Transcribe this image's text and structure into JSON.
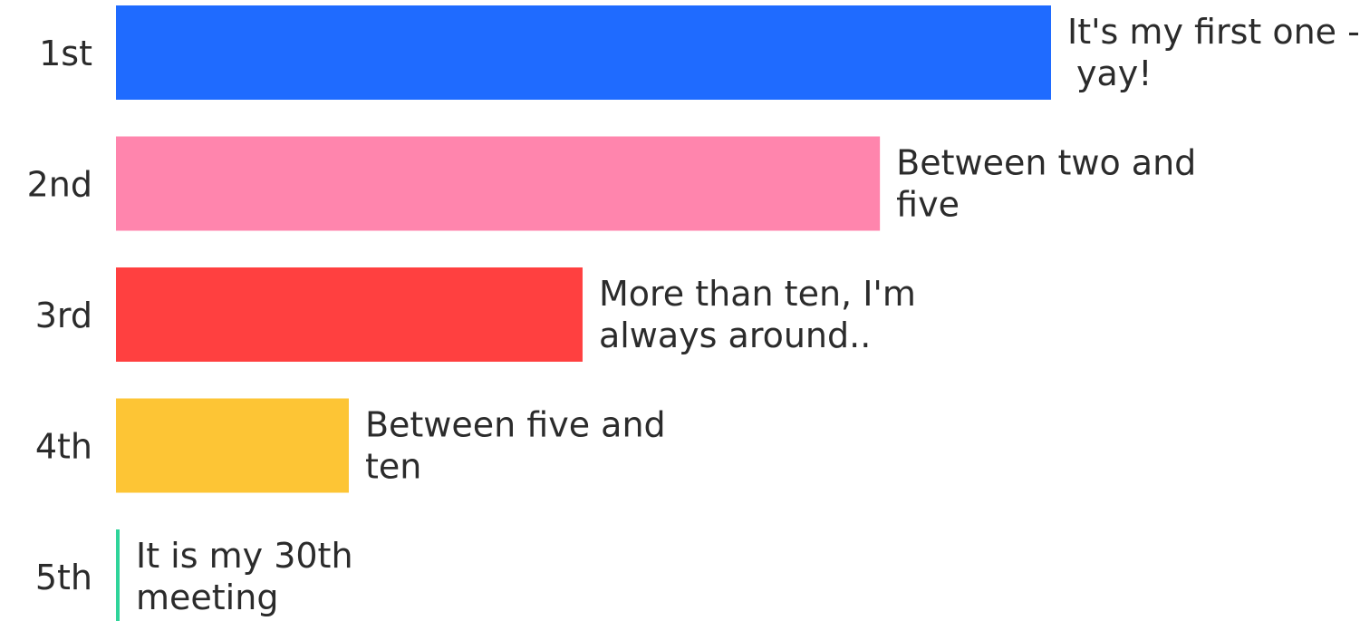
{
  "chart_data": {
    "type": "bar",
    "orientation": "horizontal",
    "title": "",
    "xlabel": "",
    "ylabel": "",
    "categories": [
      "1st",
      "2nd",
      "3rd",
      "4th",
      "5th"
    ],
    "labels": [
      [
        "It's my first one -",
        "yay!"
      ],
      [
        "Between two and",
        "five"
      ],
      [
        "More than ten, I'm",
        "always around.."
      ],
      [
        "Between five and",
        "ten"
      ],
      [
        "It is my 30th",
        "meeting"
      ]
    ],
    "values": [
      100,
      81.7,
      49.9,
      24.9,
      0
    ],
    "value_scale": "relative length, longest bar = 100",
    "colors": [
      "#1f6bff",
      "#ff85ad",
      "#ff4040",
      "#fdc535",
      "#2fd49a"
    ],
    "grid": false,
    "legend": "none"
  }
}
